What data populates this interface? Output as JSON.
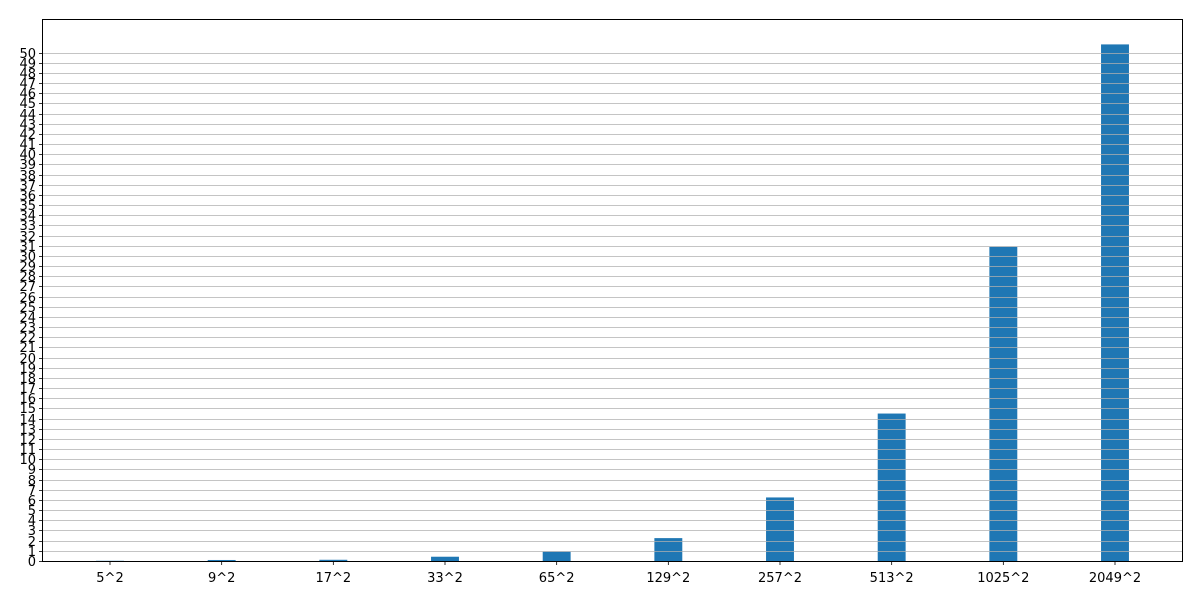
{
  "chart_data": {
    "type": "bar",
    "title": "",
    "xlabel": "",
    "ylabel": "",
    "categories": [
      "5^2",
      "9^2",
      "17^2",
      "33^2",
      "65^2",
      "129^2",
      "257^2",
      "513^2",
      "1025^2",
      "2049^2"
    ],
    "values": [
      0.02,
      0.1,
      0.12,
      0.42,
      0.93,
      2.25,
      6.25,
      14.5,
      30.9,
      50.8
    ],
    "ylim": [
      0,
      53.2
    ],
    "yticks": [
      0,
      1,
      2,
      3,
      4,
      5,
      6,
      7,
      8,
      9,
      10,
      11,
      12,
      13,
      14,
      15,
      16,
      17,
      18,
      19,
      20,
      21,
      22,
      23,
      24,
      25,
      26,
      27,
      28,
      29,
      30,
      31,
      32,
      33,
      34,
      35,
      36,
      37,
      38,
      39,
      40,
      41,
      42,
      43,
      44,
      45,
      46,
      47,
      48,
      49,
      50
    ],
    "grid": "y-axis",
    "bar_color": "#1f77b4",
    "grid_color": "#b0b0b0"
  }
}
